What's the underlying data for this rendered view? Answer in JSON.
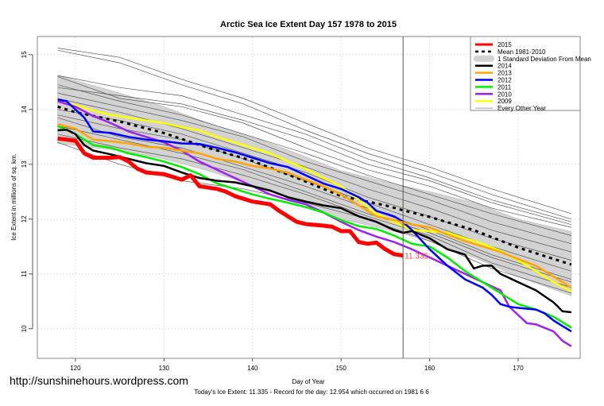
{
  "chart_data": {
    "type": "line",
    "title": "Arctic Sea Ice Extent Day 157 1978 to 2015",
    "xlabel": "Day of Year",
    "ylabel": "Ice Extent in millions of sq. km.",
    "subtitle": "Today's Ice Extent: 11.335  - Record for the day: 12.954 which occurred on 1981 6 6",
    "xlim": [
      115.7,
      177
    ],
    "ylim": [
      9.46,
      15.33
    ],
    "xticks": [
      120,
      130,
      140,
      150,
      160,
      170
    ],
    "yticks": [
      10,
      11,
      12,
      13,
      14,
      15
    ],
    "grid": true,
    "legend_position": "top-right",
    "current_day": 157,
    "current_value_label": "11.335",
    "legend": [
      {
        "label": "2015",
        "color": "#ff0000",
        "style": "thick"
      },
      {
        "label": "Mean 1981-2010",
        "color": "#000000",
        "style": "dashed"
      },
      {
        "label": "1 Standard Deviation From Mean",
        "color": "#d3d3d3",
        "style": "band"
      },
      {
        "label": "2014",
        "color": "#000000",
        "style": "line"
      },
      {
        "label": "2013",
        "color": "#ffa500",
        "style": "line"
      },
      {
        "label": "2012",
        "color": "#0000ff",
        "style": "line"
      },
      {
        "label": "2011",
        "color": "#00ee00",
        "style": "line"
      },
      {
        "label": "2010",
        "color": "#a020f0",
        "style": "line"
      },
      {
        "label": "2009",
        "color": "#ffff00",
        "style": "line"
      },
      {
        "label": "Every Other Year",
        "color": "#808080",
        "style": "thin"
      }
    ],
    "band": {
      "x": [
        118,
        125,
        130,
        135,
        140,
        145,
        150,
        155,
        160,
        165,
        170,
        176
      ],
      "upper": [
        14.62,
        14.3,
        14.05,
        13.75,
        13.5,
        13.2,
        12.88,
        12.68,
        12.5,
        12.3,
        12.0,
        11.77
      ],
      "lower": [
        13.38,
        13.25,
        13.1,
        12.88,
        12.62,
        12.33,
        12.0,
        11.82,
        11.6,
        11.3,
        10.95,
        10.6
      ]
    },
    "mean": {
      "x": [
        118,
        120,
        125,
        130,
        135,
        140,
        145,
        150,
        155,
        157,
        160,
        165,
        170,
        176
      ],
      "y": [
        14.05,
        13.95,
        13.78,
        13.57,
        13.3,
        13.06,
        12.75,
        12.42,
        12.25,
        12.16,
        12.04,
        11.8,
        11.48,
        11.17
      ]
    },
    "other_years": [
      {
        "x": [
          118,
          125,
          132,
          139,
          146,
          153,
          160,
          167,
          176
        ],
        "y": [
          15.12,
          14.95,
          14.55,
          14.2,
          13.75,
          13.3,
          12.95,
          12.55,
          12.1
        ]
      },
      {
        "x": [
          118,
          125,
          132,
          139,
          146,
          153,
          160,
          167,
          176
        ],
        "y": [
          15.08,
          14.85,
          14.45,
          14.1,
          13.62,
          13.2,
          12.85,
          12.45,
          12.0
        ]
      },
      {
        "x": [
          118,
          125,
          132,
          139,
          146,
          153,
          160,
          167,
          176
        ],
        "y": [
          14.62,
          14.4,
          14.25,
          13.9,
          13.55,
          13.1,
          12.75,
          12.35,
          11.95
        ]
      },
      {
        "x": [
          118,
          125,
          132,
          139,
          146,
          153,
          160,
          167,
          176
        ],
        "y": [
          14.6,
          14.2,
          14.05,
          13.75,
          13.3,
          12.9,
          12.6,
          12.2,
          11.85
        ]
      },
      {
        "x": [
          118,
          125,
          132,
          139,
          146,
          153,
          160,
          167,
          176
        ],
        "y": [
          14.45,
          14.15,
          13.9,
          13.55,
          13.2,
          12.8,
          12.45,
          12.1,
          11.7
        ]
      },
      {
        "x": [
          118,
          125,
          132,
          139,
          146,
          153,
          160,
          167,
          176
        ],
        "y": [
          14.3,
          14.05,
          13.8,
          13.5,
          13.05,
          12.7,
          12.35,
          11.95,
          11.55
        ]
      },
      {
        "x": [
          118,
          125,
          132,
          139,
          146,
          153,
          160,
          167,
          176
        ],
        "y": [
          14.2,
          13.95,
          13.65,
          13.3,
          12.95,
          12.55,
          12.2,
          11.8,
          11.4
        ]
      },
      {
        "x": [
          118,
          125,
          132,
          139,
          146,
          153,
          160,
          167,
          176
        ],
        "y": [
          14.0,
          13.8,
          13.55,
          13.2,
          12.85,
          12.4,
          12.05,
          11.65,
          11.25
        ]
      },
      {
        "x": [
          118,
          125,
          132,
          139,
          146,
          153,
          160,
          167,
          176
        ],
        "y": [
          13.9,
          13.65,
          13.45,
          13.1,
          12.7,
          12.3,
          11.9,
          11.5,
          11.05
        ]
      },
      {
        "x": [
          118,
          125,
          132,
          139,
          146,
          153,
          160,
          167,
          176
        ],
        "y": [
          13.85,
          13.5,
          13.3,
          12.95,
          12.6,
          12.2,
          11.8,
          11.35,
          10.9
        ]
      },
      {
        "x": [
          118,
          125,
          132,
          139,
          146,
          153,
          160,
          167,
          176
        ],
        "y": [
          13.55,
          13.3,
          13.1,
          12.8,
          12.45,
          12.05,
          11.7,
          11.2,
          10.75
        ]
      },
      {
        "x": [
          118,
          125,
          132,
          139,
          146,
          153,
          160,
          167,
          176
        ],
        "y": [
          13.4,
          13.0,
          12.7,
          12.55,
          12.3,
          12.0,
          11.6,
          11.1,
          10.65
        ]
      },
      {
        "x": [
          118,
          125,
          132,
          139,
          146,
          153,
          160,
          167,
          176
        ],
        "y": [
          14.4,
          14.25,
          14.1,
          13.8,
          13.45,
          13.0,
          12.7,
          12.3,
          11.9
        ]
      },
      {
        "x": [
          118,
          125,
          132,
          139,
          146,
          153,
          160,
          167,
          176
        ],
        "y": [
          13.7,
          13.45,
          13.2,
          12.9,
          12.5,
          12.1,
          11.75,
          11.3,
          10.85
        ]
      }
    ],
    "series": [
      {
        "name": "2009",
        "color": "#ffff00",
        "width": 2.5,
        "x": [
          118,
          120,
          122,
          124,
          126,
          128,
          130,
          132,
          134,
          136,
          138,
          140,
          142,
          144,
          146,
          148,
          150,
          152,
          154,
          156,
          158,
          160,
          162,
          164,
          166,
          168,
          170,
          172,
          174,
          176
        ],
        "y": [
          14.15,
          14.08,
          13.98,
          13.9,
          13.85,
          13.8,
          13.75,
          13.68,
          13.62,
          13.5,
          13.4,
          13.3,
          13.2,
          13.05,
          12.92,
          12.75,
          12.6,
          12.35,
          12.1,
          11.95,
          11.8,
          11.78,
          11.75,
          11.65,
          11.55,
          11.42,
          11.25,
          11.05,
          10.85,
          10.68
        ]
      },
      {
        "name": "2010",
        "color": "#a020f0",
        "width": 2.5,
        "x": [
          118,
          120,
          122,
          124,
          126,
          128,
          130,
          132,
          134,
          136,
          138,
          140,
          142,
          144,
          146,
          148,
          150,
          152,
          154,
          156,
          158,
          160,
          162,
          164,
          166,
          168,
          169,
          170,
          171,
          172,
          174,
          175,
          176
        ],
        "y": [
          14.15,
          14.05,
          13.88,
          13.75,
          13.6,
          13.5,
          13.4,
          13.25,
          13.05,
          12.9,
          12.75,
          12.6,
          12.45,
          12.35,
          12.27,
          12.12,
          11.95,
          11.8,
          11.68,
          11.58,
          11.45,
          11.3,
          11.15,
          11.0,
          10.85,
          10.7,
          10.4,
          10.25,
          10.1,
          10.08,
          9.95,
          9.78,
          9.68
        ]
      },
      {
        "name": "2011",
        "color": "#00ee00",
        "width": 2.5,
        "x": [
          118,
          120,
          121,
          122,
          124,
          126,
          128,
          130,
          132,
          134,
          136,
          138,
          140,
          142,
          144,
          146,
          148,
          150,
          152,
          154,
          156,
          158,
          160,
          162,
          164,
          166,
          168,
          170,
          172,
          174,
          176
        ],
        "y": [
          13.7,
          13.55,
          13.45,
          13.35,
          13.3,
          13.2,
          13.13,
          13.05,
          12.95,
          12.82,
          12.65,
          12.55,
          12.45,
          12.37,
          12.3,
          12.22,
          12.12,
          11.98,
          11.87,
          11.82,
          11.7,
          11.55,
          11.5,
          11.3,
          11.05,
          10.85,
          10.65,
          10.45,
          10.35,
          10.22,
          10.02
        ]
      },
      {
        "name": "2012",
        "color": "#0000ff",
        "width": 2.5,
        "x": [
          118,
          119,
          120,
          121,
          122,
          124,
          126,
          128,
          130,
          132,
          134,
          136,
          138,
          140,
          142,
          144,
          146,
          148,
          150,
          152,
          153,
          154,
          156,
          157,
          158,
          160,
          162,
          164,
          166,
          167,
          168,
          169,
          170,
          172,
          173,
          174,
          176
        ],
        "y": [
          14.18,
          14.15,
          14.0,
          13.85,
          13.6,
          13.57,
          13.5,
          13.45,
          13.42,
          13.38,
          13.37,
          13.3,
          13.22,
          13.12,
          13.02,
          12.95,
          12.8,
          12.65,
          12.55,
          12.4,
          12.3,
          12.15,
          12.05,
          11.95,
          11.8,
          11.45,
          11.15,
          10.9,
          10.75,
          10.62,
          10.45,
          10.4,
          10.38,
          10.35,
          10.28,
          10.15,
          9.95
        ]
      },
      {
        "name": "2013",
        "color": "#ffa500",
        "width": 2.5,
        "x": [
          118,
          120,
          122,
          124,
          126,
          128,
          130,
          132,
          134,
          136,
          138,
          140,
          142,
          144,
          146,
          148,
          150,
          152,
          154,
          156,
          158,
          160,
          162,
          164,
          166,
          168,
          170,
          172,
          174,
          176
        ],
        "y": [
          13.73,
          13.65,
          13.45,
          13.42,
          13.38,
          13.32,
          13.3,
          13.25,
          13.2,
          13.1,
          13.05,
          12.97,
          12.92,
          12.85,
          12.72,
          12.6,
          12.45,
          12.25,
          12.05,
          11.98,
          11.9,
          11.85,
          11.72,
          11.6,
          11.5,
          11.4,
          11.27,
          11.15,
          10.95,
          10.75
        ]
      },
      {
        "name": "2014",
        "color": "#000000",
        "width": 2.5,
        "x": [
          118,
          119,
          120,
          121,
          122,
          124,
          126,
          128,
          130,
          132,
          134,
          136,
          138,
          140,
          142,
          144,
          146,
          148,
          150,
          152,
          154,
          156,
          157,
          158,
          160,
          162,
          164,
          165,
          166,
          167,
          168,
          170,
          172,
          174,
          175,
          176
        ],
        "y": [
          13.62,
          13.63,
          13.55,
          13.35,
          13.25,
          13.18,
          13.1,
          13.02,
          12.97,
          12.85,
          12.75,
          12.7,
          12.67,
          12.6,
          12.52,
          12.4,
          12.32,
          12.25,
          12.2,
          12.05,
          11.95,
          11.8,
          11.75,
          11.78,
          11.65,
          11.45,
          11.35,
          11.1,
          11.15,
          11.15,
          11.0,
          10.85,
          10.7,
          10.48,
          10.32,
          10.3
        ]
      },
      {
        "name": "2015",
        "color": "#ff0000",
        "width": 5,
        "x": [
          118,
          119,
          120,
          121,
          122,
          124,
          125,
          126,
          127,
          128,
          130,
          131,
          132,
          133,
          134,
          136,
          137,
          138,
          139,
          140,
          142,
          143,
          144,
          145,
          146,
          148,
          149,
          150,
          151,
          152,
          153,
          154,
          155,
          156,
          157
        ],
        "y": [
          13.47,
          13.45,
          13.43,
          13.2,
          13.12,
          13.12,
          13.13,
          13.05,
          12.92,
          12.85,
          12.82,
          12.77,
          12.72,
          12.8,
          12.6,
          12.55,
          12.5,
          12.42,
          12.37,
          12.32,
          12.27,
          12.15,
          12.05,
          11.95,
          11.91,
          11.88,
          11.86,
          11.78,
          11.78,
          11.58,
          11.55,
          11.57,
          11.45,
          11.36,
          11.335
        ]
      }
    ]
  },
  "watermark": "http://sunshinehours.wordpress.com"
}
